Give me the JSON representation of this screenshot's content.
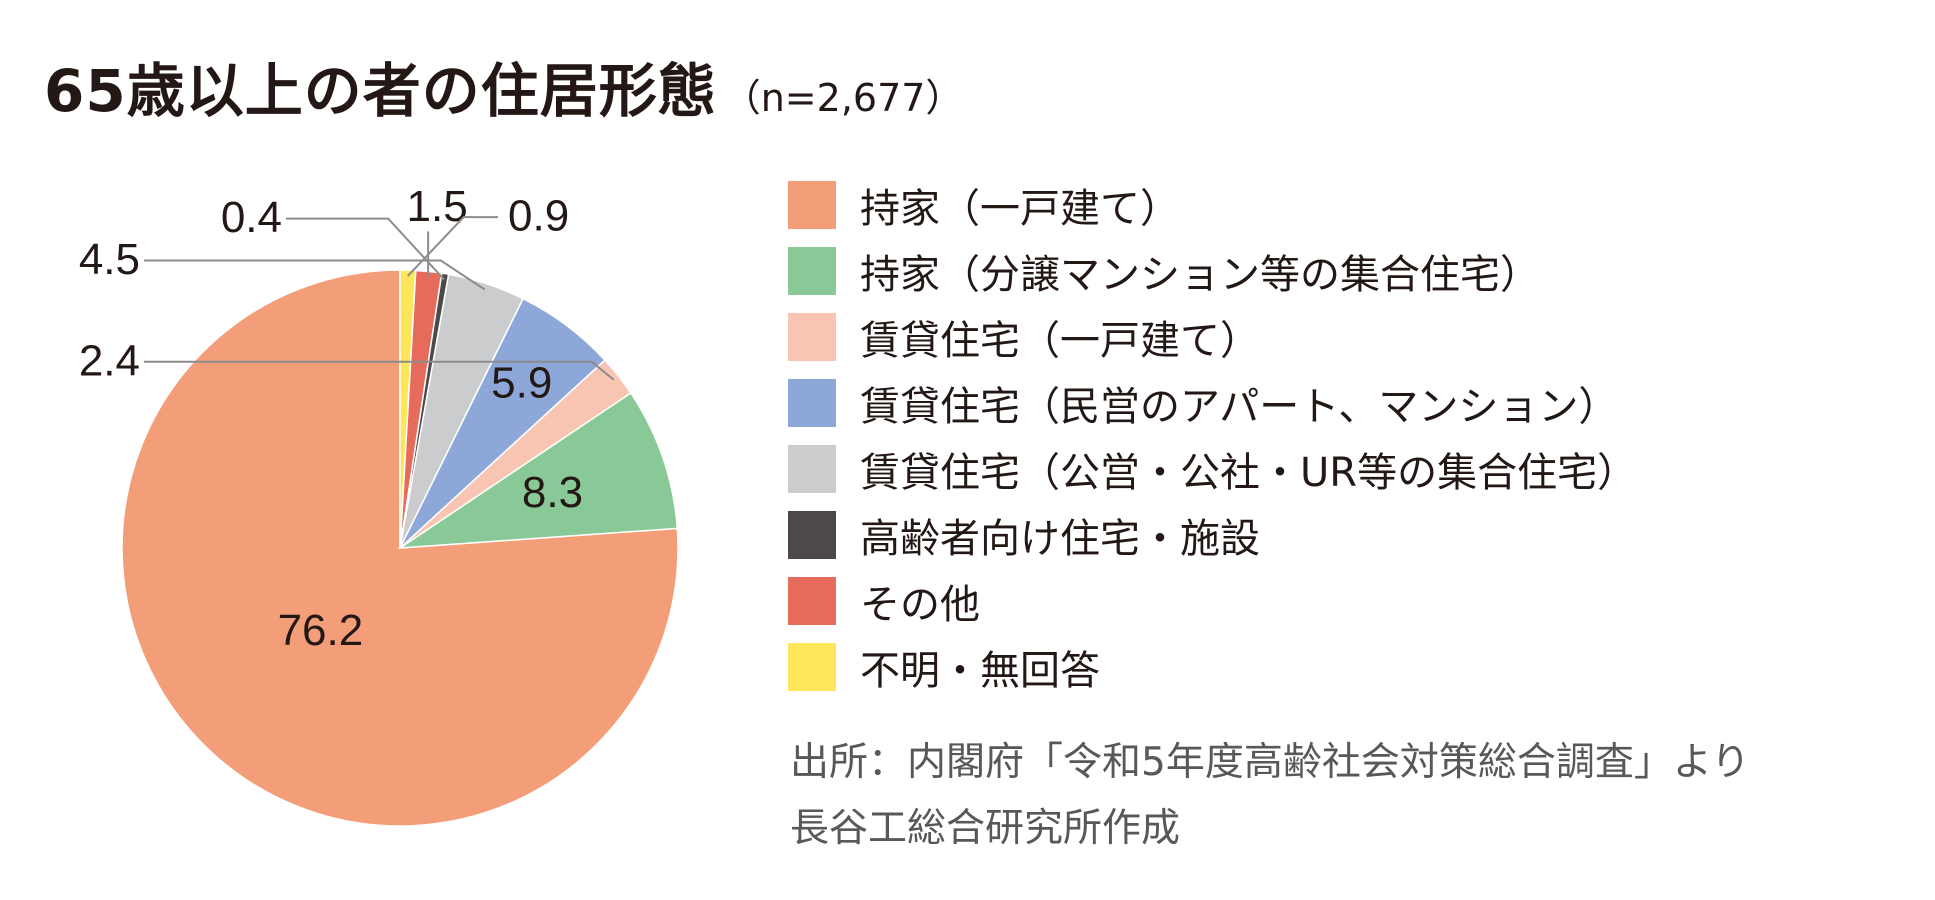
{
  "title": "65歳以上の者の住居形態",
  "title_n": "（n=2,677）",
  "chart_data": {
    "type": "pie",
    "title": "65歳以上の者の住居形態（n=2,677）",
    "unit": "%",
    "slices": [
      {
        "label": "持家（一戸建て）",
        "value": 76.2,
        "display": "76.2",
        "color": "#f39e79"
      },
      {
        "label": "持家（分譲マンション等の集合住宅）",
        "value": 8.3,
        "display": "8.3",
        "color": "#89c997"
      },
      {
        "label": "賃貸住宅（一戸建て）",
        "value": 2.4,
        "display": "2.4",
        "color": "#f8c5b3"
      },
      {
        "label": "賃貸住宅（民営のアパート、マンション）",
        "value": 5.9,
        "display": "5.9",
        "color": "#8da8d8"
      },
      {
        "label": "賃貸住宅（公営・公社・UR等の集合住宅）",
        "value": 4.5,
        "display": "4.5",
        "color": "#cbcccd"
      },
      {
        "label": "高齢者向け住宅・施設",
        "value": 0.4,
        "display": "0.4",
        "color": "#4c4948"
      },
      {
        "label": "その他",
        "value": 1.5,
        "display": "1.5",
        "color": "#e66b5a"
      },
      {
        "label": "不明・無回答",
        "value": 0.9,
        "display": "0.9",
        "color": "#fde65a"
      }
    ],
    "legend_position": "right"
  },
  "source_lines": [
    "出所：内閣府「令和5年度高齢社会対策総合調査」より",
    "長谷工総合研究所作成"
  ]
}
